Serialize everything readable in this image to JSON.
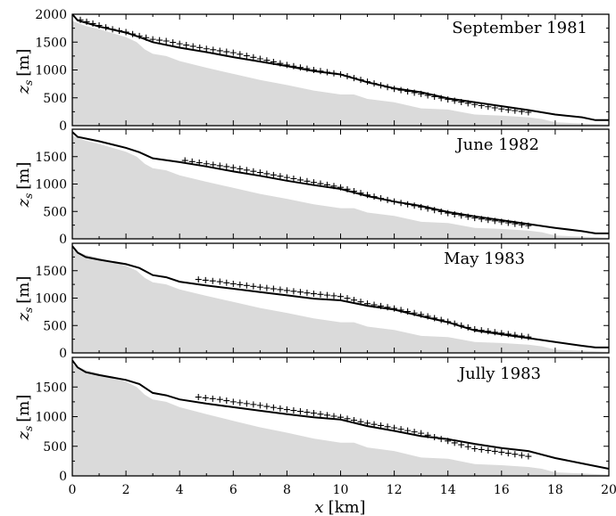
{
  "figure": {
    "xlabel_var": "x",
    "xlabel_unit": "[km]",
    "ylabel_var": "z",
    "ylabel_sub": "s",
    "ylabel_unit": "[m]",
    "x_ticks": [
      "0",
      "2",
      "4",
      "6",
      "8",
      "10",
      "12",
      "14",
      "16",
      "18",
      "20"
    ]
  },
  "chart_data": [
    {
      "type": "line",
      "title": "September 1981",
      "xlim": [
        0,
        20
      ],
      "ylim": [
        0,
        2000
      ],
      "y_ticks": [
        "0",
        "500",
        "1000",
        "1500",
        "2000"
      ],
      "series": [
        {
          "kind": "bedrock",
          "x": [
            0,
            0.5,
            1,
            1.5,
            2,
            2.4,
            2.7,
            3,
            3.5,
            4,
            5,
            6,
            7,
            8,
            9,
            10,
            10.5,
            11,
            12,
            13,
            14,
            15,
            16,
            17,
            17.5,
            18,
            19,
            20
          ],
          "y": [
            1880,
            1790,
            1730,
            1660,
            1590,
            1500,
            1370,
            1290,
            1250,
            1160,
            1040,
            930,
            820,
            730,
            630,
            560,
            560,
            480,
            420,
            310,
            290,
            200,
            180,
            150,
            120,
            60,
            40,
            20
          ]
        },
        {
          "kind": "surface",
          "x": [
            0,
            0.2,
            1,
            2,
            2.5,
            3,
            4,
            5,
            6,
            7,
            8,
            9,
            10,
            11,
            12,
            13,
            14,
            15,
            16,
            17,
            18,
            19,
            19.5,
            20
          ],
          "y": [
            2000,
            1890,
            1780,
            1670,
            1590,
            1500,
            1400,
            1320,
            1230,
            1150,
            1070,
            980,
            920,
            780,
            670,
            600,
            490,
            420,
            350,
            280,
            200,
            150,
            100,
            100
          ]
        },
        {
          "kind": "observed",
          "x": [
            0.3,
            1,
            1.5,
            2,
            2.5,
            3,
            3.5,
            4,
            5,
            6,
            7,
            8,
            9,
            10,
            11,
            12,
            13,
            14,
            15,
            16,
            17
          ],
          "y": [
            1900,
            1800,
            1730,
            1680,
            1610,
            1550,
            1520,
            1470,
            1380,
            1310,
            1200,
            1090,
            1000,
            920,
            790,
            660,
            570,
            470,
            380,
            300,
            240
          ]
        }
      ]
    },
    {
      "type": "line",
      "title": "June 1982",
      "xlim": [
        0,
        20
      ],
      "ylim": [
        0,
        2000
      ],
      "y_ticks": [
        "0",
        "500",
        "1000",
        "1500"
      ],
      "series": [
        {
          "kind": "bedrock",
          "x": [
            0,
            0.5,
            1,
            1.5,
            2,
            2.4,
            2.7,
            3,
            3.5,
            4,
            5,
            6,
            7,
            8,
            9,
            10,
            10.5,
            11,
            12,
            13,
            14,
            15,
            16,
            17,
            17.5,
            18,
            19,
            20
          ],
          "y": [
            1880,
            1790,
            1730,
            1660,
            1590,
            1500,
            1370,
            1290,
            1250,
            1160,
            1040,
            930,
            820,
            730,
            630,
            560,
            560,
            480,
            420,
            310,
            290,
            200,
            180,
            150,
            120,
            60,
            40,
            20
          ]
        },
        {
          "kind": "surface",
          "x": [
            0,
            0.2,
            1,
            2,
            2.5,
            3,
            4,
            5,
            6,
            7,
            8,
            9,
            10,
            11,
            12,
            13,
            14,
            15,
            16,
            17,
            18,
            19,
            19.5,
            20
          ],
          "y": [
            1950,
            1860,
            1780,
            1660,
            1580,
            1470,
            1400,
            1320,
            1230,
            1150,
            1060,
            980,
            910,
            780,
            680,
            600,
            490,
            410,
            340,
            270,
            200,
            140,
            100,
            100
          ]
        },
        {
          "kind": "observed",
          "x": [
            4.2,
            5,
            6,
            7,
            8,
            9,
            10,
            11,
            12,
            13,
            14,
            15,
            16,
            17
          ],
          "y": [
            1430,
            1370,
            1300,
            1210,
            1120,
            1030,
            940,
            800,
            680,
            580,
            470,
            380,
            310,
            240
          ]
        }
      ]
    },
    {
      "type": "line",
      "title": "May 1983",
      "xlim": [
        0,
        20
      ],
      "ylim": [
        0,
        2000
      ],
      "y_ticks": [
        "0",
        "500",
        "1000",
        "1500"
      ],
      "series": [
        {
          "kind": "bedrock",
          "x": [
            0,
            0.5,
            1,
            1.5,
            2,
            2.4,
            2.7,
            3,
            3.5,
            4,
            5,
            6,
            7,
            8,
            9,
            10,
            10.5,
            11,
            12,
            13,
            14,
            15,
            16,
            17,
            17.5,
            18,
            19,
            20
          ],
          "y": [
            1880,
            1790,
            1730,
            1660,
            1590,
            1500,
            1370,
            1290,
            1250,
            1160,
            1040,
            930,
            820,
            730,
            630,
            560,
            560,
            480,
            420,
            310,
            290,
            200,
            180,
            150,
            120,
            60,
            40,
            20
          ]
        },
        {
          "kind": "surface",
          "x": [
            0,
            0.2,
            0.5,
            1,
            2,
            2.5,
            3,
            3.5,
            4,
            5,
            6,
            7,
            8,
            9,
            10,
            11,
            12,
            13,
            14,
            15,
            16,
            17,
            18,
            19,
            19.5,
            20
          ],
          "y": [
            1950,
            1830,
            1750,
            1700,
            1620,
            1550,
            1420,
            1380,
            1300,
            1230,
            1170,
            1110,
            1050,
            990,
            960,
            860,
            790,
            670,
            560,
            410,
            340,
            270,
            200,
            130,
            100,
            100
          ]
        },
        {
          "kind": "observed",
          "x": [
            4.7,
            5.5,
            6,
            7,
            8,
            9,
            10,
            11,
            12,
            13,
            14,
            15,
            16,
            17
          ],
          "y": [
            1340,
            1300,
            1260,
            1200,
            1140,
            1080,
            1030,
            900,
            810,
            700,
            570,
            430,
            360,
            290
          ]
        }
      ]
    },
    {
      "type": "line",
      "title": "Jully 1983",
      "xlim": [
        0,
        20
      ],
      "ylim": [
        0,
        2000
      ],
      "y_ticks": [
        "0",
        "500",
        "1000",
        "1500"
      ],
      "series": [
        {
          "kind": "bedrock",
          "x": [
            0,
            0.5,
            1,
            1.5,
            2,
            2.4,
            2.7,
            3,
            3.5,
            4,
            5,
            6,
            7,
            8,
            9,
            10,
            10.5,
            11,
            12,
            13,
            14,
            15,
            16,
            17,
            17.5,
            18,
            19,
            20
          ],
          "y": [
            1880,
            1790,
            1730,
            1660,
            1590,
            1500,
            1370,
            1290,
            1250,
            1160,
            1040,
            930,
            820,
            730,
            630,
            560,
            560,
            480,
            420,
            310,
            290,
            200,
            180,
            150,
            120,
            60,
            40,
            20
          ]
        },
        {
          "kind": "surface",
          "x": [
            0,
            0.2,
            0.5,
            1,
            2,
            2.5,
            3,
            3.5,
            4,
            5,
            6,
            7,
            8,
            9,
            10,
            11,
            12,
            13,
            14,
            15,
            16,
            17,
            18,
            19,
            20
          ],
          "y": [
            1950,
            1830,
            1750,
            1700,
            1620,
            1550,
            1400,
            1360,
            1290,
            1220,
            1160,
            1100,
            1040,
            990,
            950,
            840,
            760,
            670,
            620,
            540,
            470,
            420,
            300,
            210,
            120
          ]
        },
        {
          "kind": "observed",
          "x": [
            4.7,
            5.5,
            6,
            7,
            8,
            9,
            10,
            11,
            12,
            13,
            14,
            15,
            16,
            17
          ],
          "y": [
            1330,
            1290,
            1250,
            1190,
            1120,
            1060,
            990,
            890,
            810,
            720,
            590,
            460,
            400,
            330
          ]
        }
      ]
    }
  ]
}
